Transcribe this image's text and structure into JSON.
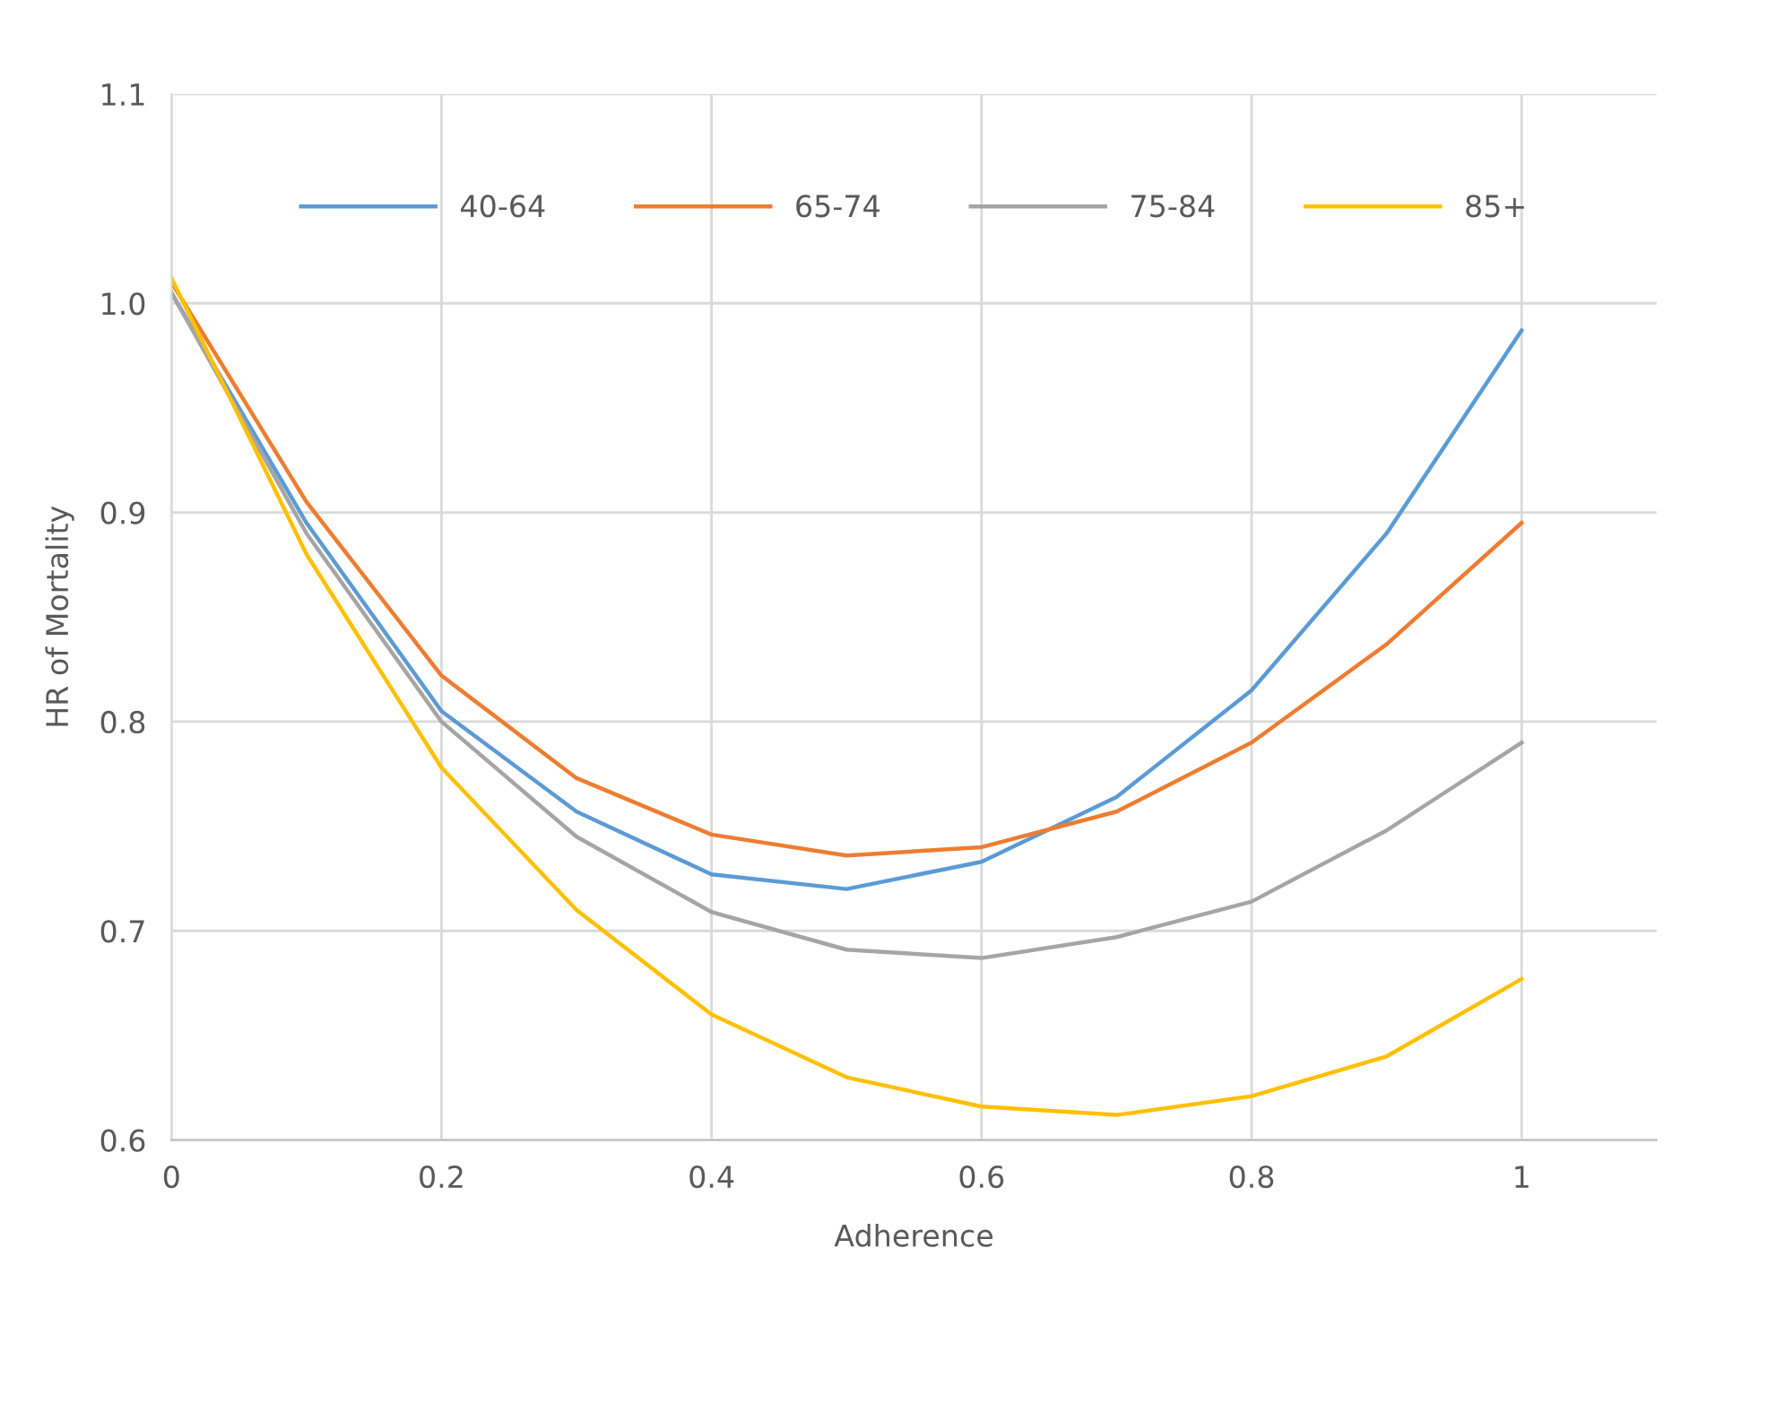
{
  "chart_data": {
    "type": "line",
    "xlabel": "Adherence",
    "ylabel": "HR of Mortality",
    "x": [
      0,
      0.1,
      0.2,
      0.3,
      0.4,
      0.5,
      0.6,
      0.7,
      0.8,
      0.9,
      1.0
    ],
    "series": [
      {
        "name": "40-64",
        "color": "#5b9bd5",
        "values": [
          1.005,
          0.895,
          0.805,
          0.757,
          0.727,
          0.72,
          0.733,
          0.764,
          0.815,
          0.89,
          0.987
        ]
      },
      {
        "name": "65-74",
        "color": "#ed7d31",
        "values": [
          1.01,
          0.905,
          0.822,
          0.773,
          0.746,
          0.736,
          0.74,
          0.757,
          0.79,
          0.837,
          0.895
        ]
      },
      {
        "name": "75-84",
        "color": "#a5a5a5",
        "values": [
          1.005,
          0.89,
          0.8,
          0.745,
          0.709,
          0.691,
          0.687,
          0.697,
          0.714,
          0.748,
          0.79
        ]
      },
      {
        "name": "85+",
        "color": "#ffc000",
        "values": [
          1.012,
          0.88,
          0.778,
          0.71,
          0.66,
          0.63,
          0.616,
          0.612,
          0.621,
          0.64,
          0.677
        ]
      }
    ],
    "xlim": [
      0,
      1.1
    ],
    "ylim": [
      0.6,
      1.1
    ],
    "xticks": [
      0,
      0.2,
      0.4,
      0.6,
      0.8,
      1
    ],
    "yticks": [
      0.6,
      0.7,
      0.8,
      0.9,
      {
        "value": 1,
        "label": "1.0"
      },
      1.1
    ],
    "grid": true,
    "legend": "top",
    "marker": "none",
    "line_style": "solid"
  }
}
